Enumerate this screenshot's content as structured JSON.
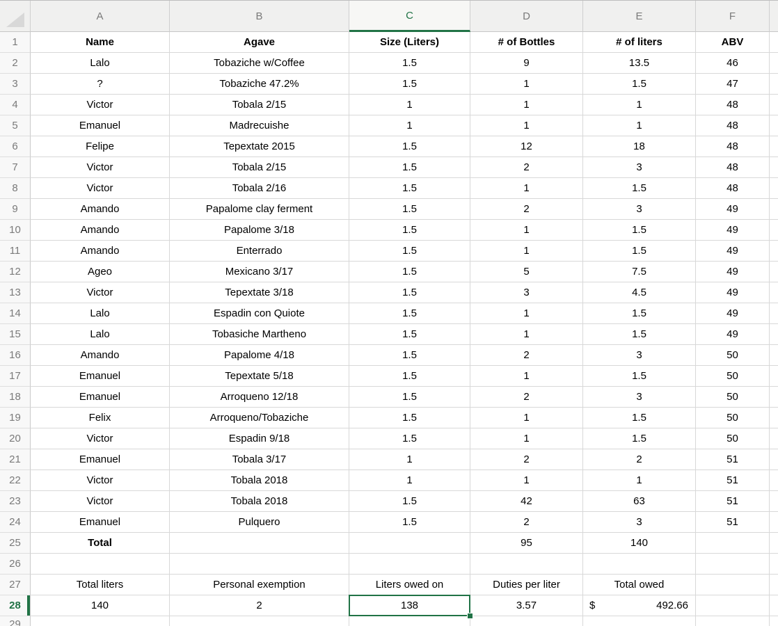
{
  "sheet": {
    "column_letters": [
      "A",
      "B",
      "C",
      "D",
      "E",
      "F"
    ],
    "selection": {
      "column": "C",
      "row": 28,
      "cell": "C28",
      "value": "138"
    },
    "accent_color": "#217346",
    "partial_bottom_row": 29,
    "rows": [
      {
        "n": 1,
        "bold": true,
        "cells": [
          "Name",
          "Agave",
          "Size (Liters)",
          "# of Bottles",
          "# of liters",
          "ABV"
        ]
      },
      {
        "n": 2,
        "cells": [
          "Lalo",
          "Tobaziche w/Coffee",
          "1.5",
          "9",
          "13.5",
          "46"
        ]
      },
      {
        "n": 3,
        "cells": [
          "?",
          "Tobaziche 47.2%",
          "1.5",
          "1",
          "1.5",
          "47"
        ]
      },
      {
        "n": 4,
        "cells": [
          "Victor",
          "Tobala 2/15",
          "1",
          "1",
          "1",
          "48"
        ]
      },
      {
        "n": 5,
        "cells": [
          "Emanuel",
          "Madrecuishe",
          "1",
          "1",
          "1",
          "48"
        ]
      },
      {
        "n": 6,
        "cells": [
          "Felipe",
          "Tepextate 2015",
          "1.5",
          "12",
          "18",
          "48"
        ]
      },
      {
        "n": 7,
        "cells": [
          "Victor",
          "Tobala 2/15",
          "1.5",
          "2",
          "3",
          "48"
        ]
      },
      {
        "n": 8,
        "cells": [
          "Victor",
          "Tobala 2/16",
          "1.5",
          "1",
          "1.5",
          "48"
        ]
      },
      {
        "n": 9,
        "cells": [
          "Amando",
          "Papalome clay ferment",
          "1.5",
          "2",
          "3",
          "49"
        ]
      },
      {
        "n": 10,
        "cells": [
          "Amando",
          "Papalome 3/18",
          "1.5",
          "1",
          "1.5",
          "49"
        ]
      },
      {
        "n": 11,
        "cells": [
          "Amando",
          "Enterrado",
          "1.5",
          "1",
          "1.5",
          "49"
        ]
      },
      {
        "n": 12,
        "cells": [
          "Ageo",
          "Mexicano 3/17",
          "1.5",
          "5",
          "7.5",
          "49"
        ]
      },
      {
        "n": 13,
        "cells": [
          "Victor",
          "Tepextate 3/18",
          "1.5",
          "3",
          "4.5",
          "49"
        ]
      },
      {
        "n": 14,
        "cells": [
          "Lalo",
          "Espadin con Quiote",
          "1.5",
          "1",
          "1.5",
          "49"
        ]
      },
      {
        "n": 15,
        "cells": [
          "Lalo",
          "Tobasiche Martheno",
          "1.5",
          "1",
          "1.5",
          "49"
        ]
      },
      {
        "n": 16,
        "cells": [
          "Amando",
          "Papalome 4/18",
          "1.5",
          "2",
          "3",
          "50"
        ]
      },
      {
        "n": 17,
        "cells": [
          "Emanuel",
          "Tepextate 5/18",
          "1.5",
          "1",
          "1.5",
          "50"
        ]
      },
      {
        "n": 18,
        "cells": [
          "Emanuel",
          "Arroqueno 12/18",
          "1.5",
          "2",
          "3",
          "50"
        ]
      },
      {
        "n": 19,
        "cells": [
          "Felix",
          "Arroqueno/Tobaziche",
          "1.5",
          "1",
          "1.5",
          "50"
        ]
      },
      {
        "n": 20,
        "cells": [
          "Victor",
          "Espadin 9/18",
          "1.5",
          "1",
          "1.5",
          "50"
        ]
      },
      {
        "n": 21,
        "cells": [
          "Emanuel",
          "Tobala 3/17",
          "1",
          "2",
          "2",
          "51"
        ]
      },
      {
        "n": 22,
        "cells": [
          "Victor",
          "Tobala 2018",
          "1",
          "1",
          "1",
          "51"
        ]
      },
      {
        "n": 23,
        "cells": [
          "Victor",
          "Tobala 2018",
          "1.5",
          "42",
          "63",
          "51"
        ]
      },
      {
        "n": 24,
        "cells": [
          "Emanuel",
          "Pulquero",
          "1.5",
          "2",
          "3",
          "51"
        ]
      },
      {
        "n": 25,
        "bold_cells": [
          0
        ],
        "cells": [
          "Total",
          "",
          "",
          "95",
          "140",
          ""
        ]
      },
      {
        "n": 26,
        "cells": [
          "",
          "",
          "",
          "",
          "",
          ""
        ]
      },
      {
        "n": 27,
        "cells": [
          "Total liters",
          "Personal exemption",
          "Liters owed on",
          "Duties per liter",
          "Total owed",
          ""
        ]
      },
      {
        "n": 28,
        "cells": [
          "140",
          "2",
          "138",
          "3.57",
          {
            "symbol": "$",
            "amount": "492.66"
          },
          ""
        ]
      }
    ]
  }
}
